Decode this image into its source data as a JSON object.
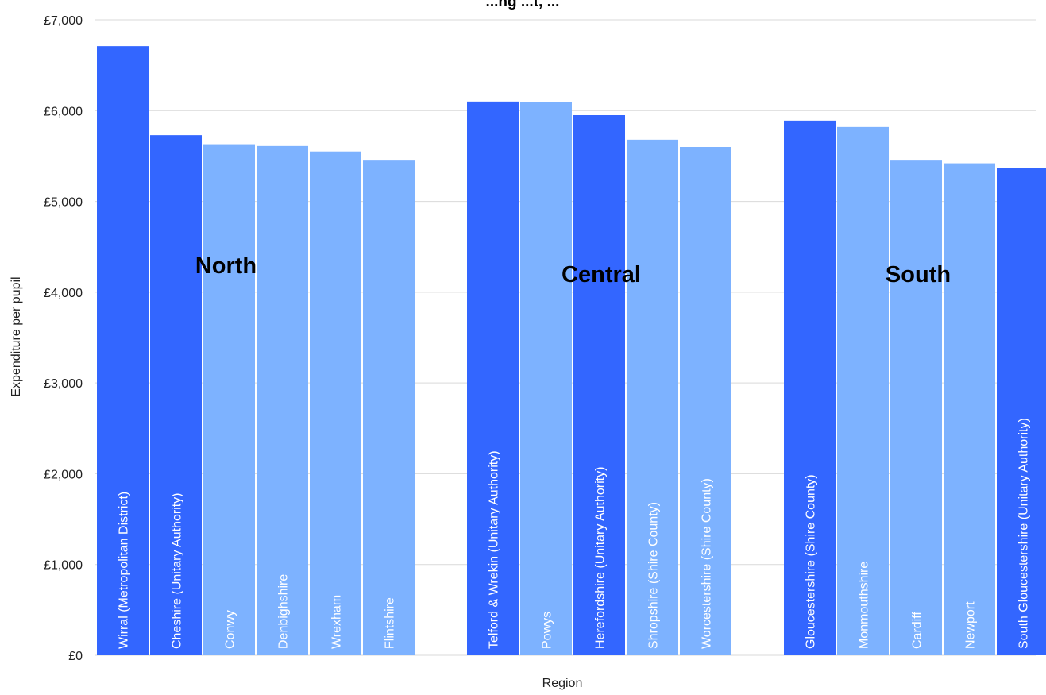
{
  "chart_data": {
    "type": "bar",
    "title": "...ng ...t, ...",
    "xlabel": "Region",
    "ylabel": "Expenditure per pupil",
    "ylim": [
      0,
      7000
    ],
    "y_ticks": [
      "£0",
      "£1,000",
      "£2,000",
      "£3,000",
      "£4,000",
      "£5,000",
      "£6,000",
      "£7,000"
    ],
    "y_tick_values": [
      0,
      1000,
      2000,
      3000,
      4000,
      5000,
      6000,
      7000
    ],
    "grid": true,
    "groups": [
      {
        "label": "North",
        "bars": [
          {
            "category": "Wirral (Metropolitan District)",
            "value": 6710
          },
          {
            "category": "Cheshire (Unitary Authority)",
            "value": 5730
          },
          {
            "category": "Conwy",
            "value": 5630
          },
          {
            "category": "Denbighshire",
            "value": 5610
          },
          {
            "category": "Wrexham",
            "value": 5550
          },
          {
            "category": "Flintshire",
            "value": 5450
          }
        ]
      },
      {
        "label": "Central",
        "bars": [
          {
            "category": "Telford & Wrekin (Unitary Authority)",
            "value": 6100
          },
          {
            "category": "Powys",
            "value": 6090
          },
          {
            "category": "Herefordshire (Unitary Authority)",
            "value": 5950
          },
          {
            "category": "Shropshire (Shire County)",
            "value": 5680
          },
          {
            "category": "Worcestershire (Shire County)",
            "value": 5600
          }
        ]
      },
      {
        "label": "South",
        "bars": [
          {
            "category": "Gloucestershire (Shire County)",
            "value": 5890
          },
          {
            "category": "Monmouthshire",
            "value": 5820
          },
          {
            "category": "Cardiff",
            "value": 5450
          },
          {
            "category": "Newport",
            "value": 5420
          },
          {
            "category": "South Gloucestershire (Unitary Authority)",
            "value": 5370
          }
        ]
      }
    ],
    "colors": {
      "unitary": "#3366ff",
      "other": "#7db2ff",
      "grid": "#d9d9d9"
    }
  }
}
